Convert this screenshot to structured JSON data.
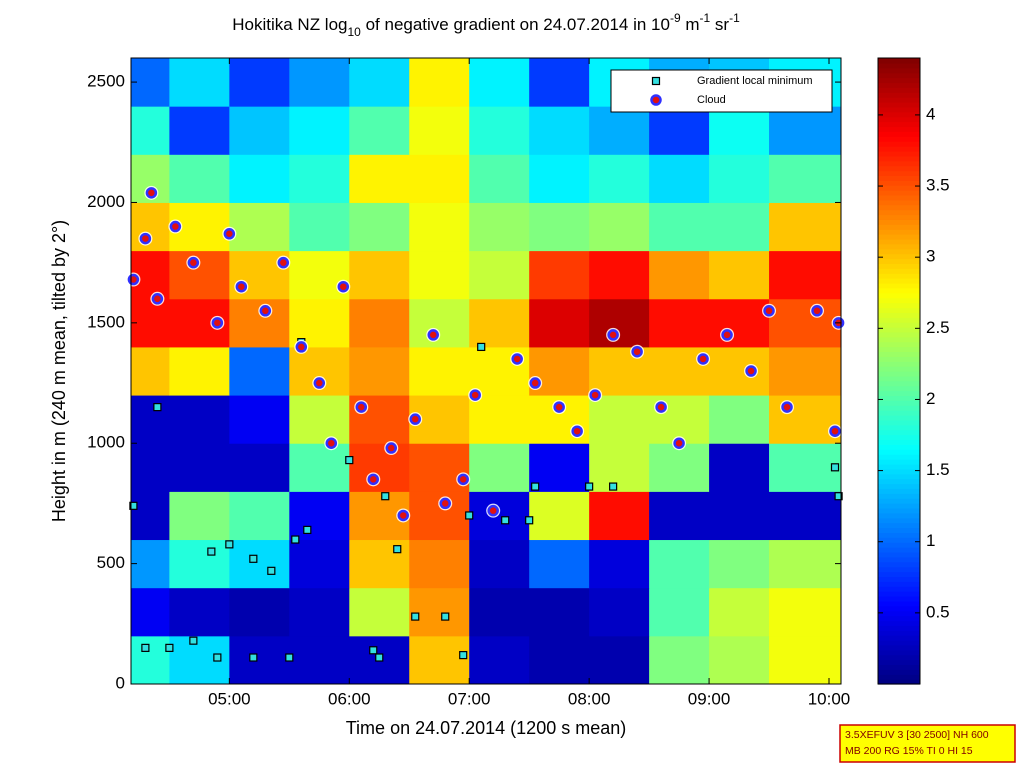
{
  "chart_data": {
    "type": "heatmap",
    "title_parts": [
      {
        "text": "Hokitika NZ log",
        "shift": "normal"
      },
      {
        "text": "10",
        "shift": "sub"
      },
      {
        "text": " of negative gradient on 24.07.2014 in 10",
        "shift": "normal"
      },
      {
        "text": "-9",
        "shift": "super"
      },
      {
        "text": " m",
        "shift": "normal"
      },
      {
        "text": "-1",
        "shift": "super"
      },
      {
        "text": " sr",
        "shift": "normal"
      },
      {
        "text": "-1",
        "shift": "super"
      }
    ],
    "x_label": "Time on 24.07.2014 (1200 s mean)",
    "y_label": "Height in m (240 m mean, tilted by 2°)",
    "xlim": [
      4.18,
      10.1
    ],
    "ylim": [
      0,
      2600
    ],
    "xticks": [
      {
        "value": 5,
        "label": "05:00"
      },
      {
        "value": 6,
        "label": "06:00"
      },
      {
        "value": 7,
        "label": "07:00"
      },
      {
        "value": 8,
        "label": "08:00"
      },
      {
        "value": 9,
        "label": "09:00"
      },
      {
        "value": 10,
        "label": "10:00"
      }
    ],
    "yticks": [
      0,
      500,
      1000,
      1500,
      2000,
      2500
    ],
    "colormap": "jet",
    "clim": [
      0,
      4.4
    ],
    "cticks": [
      0.5,
      1,
      1.5,
      2,
      2.5,
      3,
      3.5,
      4
    ],
    "x_edges": [
      4.18,
      4.5,
      5,
      5.5,
      6,
      6.5,
      7,
      7.5,
      8,
      8.5,
      9,
      9.5,
      10.1
    ],
    "y_edges": [
      0,
      200,
      400,
      600,
      800,
      1000,
      1200,
      1400,
      1600,
      1800,
      2000,
      2200,
      2400,
      2600
    ],
    "z": [
      [
        1.8,
        1.5,
        0.3,
        0.3,
        0.3,
        3.0,
        0.3,
        0.2,
        0.2,
        2.2,
        2.4,
        2.7
      ],
      [
        0.5,
        0.3,
        0.2,
        0.3,
        2.5,
        3.2,
        0.2,
        0.2,
        0.3,
        2.0,
        2.5,
        2.7
      ],
      [
        1.2,
        1.8,
        1.5,
        0.4,
        3.0,
        3.3,
        0.3,
        1.0,
        0.4,
        2.0,
        2.2,
        2.4
      ],
      [
        0.3,
        2.2,
        2.0,
        0.5,
        3.2,
        3.5,
        0.4,
        2.6,
        3.8,
        0.3,
        0.3,
        0.3
      ],
      [
        0.3,
        0.3,
        0.3,
        2.0,
        3.6,
        3.5,
        2.2,
        0.5,
        2.5,
        2.2,
        0.3,
        2.0
      ],
      [
        0.3,
        0.3,
        0.5,
        2.5,
        3.5,
        3.0,
        2.8,
        2.8,
        2.5,
        2.5,
        2.2,
        3.0
      ],
      [
        3.0,
        2.8,
        1.0,
        3.0,
        3.2,
        2.8,
        2.8,
        3.2,
        3.0,
        3.0,
        3.0,
        3.2
      ],
      [
        3.8,
        3.8,
        3.3,
        2.8,
        3.3,
        2.5,
        3.0,
        4.0,
        4.2,
        3.8,
        3.8,
        3.5
      ],
      [
        3.8,
        3.5,
        3.0,
        2.7,
        3.0,
        2.7,
        2.5,
        3.6,
        3.8,
        3.2,
        3.0,
        3.8
      ],
      [
        3.0,
        2.8,
        2.4,
        2.0,
        2.2,
        2.7,
        2.3,
        2.2,
        2.3,
        2.0,
        2.0,
        3.0
      ],
      [
        2.3,
        2.0,
        1.6,
        1.8,
        2.8,
        2.8,
        2.0,
        1.6,
        1.8,
        1.5,
        1.8,
        2.0
      ],
      [
        1.8,
        0.8,
        1.4,
        1.6,
        2.0,
        2.7,
        1.8,
        1.5,
        1.3,
        0.8,
        1.7,
        1.2
      ],
      [
        1.0,
        1.5,
        0.8,
        1.2,
        1.5,
        2.8,
        1.6,
        0.8,
        1.6,
        1.3,
        1.4,
        1.6
      ]
    ],
    "series": [
      {
        "name": "Gradient local minimum",
        "marker": "square",
        "color": "#33e0e0",
        "edge": "#000000",
        "x": [
          4.2,
          4.3,
          4.5,
          4.7,
          4.9,
          5.2,
          5.5,
          4.85,
          5.0,
          5.2,
          5.35,
          5.55,
          5.65,
          6.0,
          6.2,
          6.25,
          6.4,
          6.55,
          6.8,
          6.95,
          7.0,
          7.3,
          7.5,
          7.55,
          8.0,
          8.2,
          10.05,
          10.08,
          4.4,
          5.6,
          6.3,
          7.1
        ],
        "y": [
          740,
          150,
          150,
          180,
          110,
          110,
          110,
          550,
          580,
          520,
          470,
          600,
          640,
          930,
          140,
          110,
          560,
          280,
          280,
          120,
          700,
          680,
          680,
          820,
          820,
          820,
          900,
          780,
          1150,
          1420,
          780,
          1400
        ]
      },
      {
        "name": "Cloud",
        "marker": "circle",
        "color": "#e01010",
        "edge": "#3030ff",
        "x": [
          4.2,
          4.3,
          4.35,
          4.4,
          4.55,
          4.7,
          4.9,
          5.0,
          5.1,
          5.3,
          5.45,
          5.6,
          5.75,
          5.85,
          5.95,
          6.1,
          6.2,
          6.35,
          6.45,
          6.55,
          6.7,
          6.8,
          6.95,
          7.05,
          7.2,
          7.4,
          7.55,
          7.75,
          7.9,
          8.05,
          8.2,
          8.4,
          8.6,
          8.75,
          8.95,
          9.15,
          9.35,
          9.5,
          9.65,
          9.9,
          10.05,
          10.08
        ],
        "y": [
          1680,
          1850,
          2040,
          1600,
          1900,
          1750,
          1500,
          1870,
          1650,
          1550,
          1750,
          1400,
          1250,
          1000,
          1650,
          1150,
          850,
          980,
          700,
          1100,
          1450,
          750,
          850,
          1200,
          720,
          1350,
          1250,
          1150,
          1050,
          1200,
          1450,
          1380,
          1150,
          1000,
          1350,
          1450,
          1300,
          1550,
          1150,
          1550,
          1050,
          1500
        ]
      }
    ],
    "legend": "upper right",
    "info_box": [
      "3.5XEFUV 3 [30 2500] NH 600",
      "MB 200 RG 15% TI 0 HI 15"
    ]
  }
}
